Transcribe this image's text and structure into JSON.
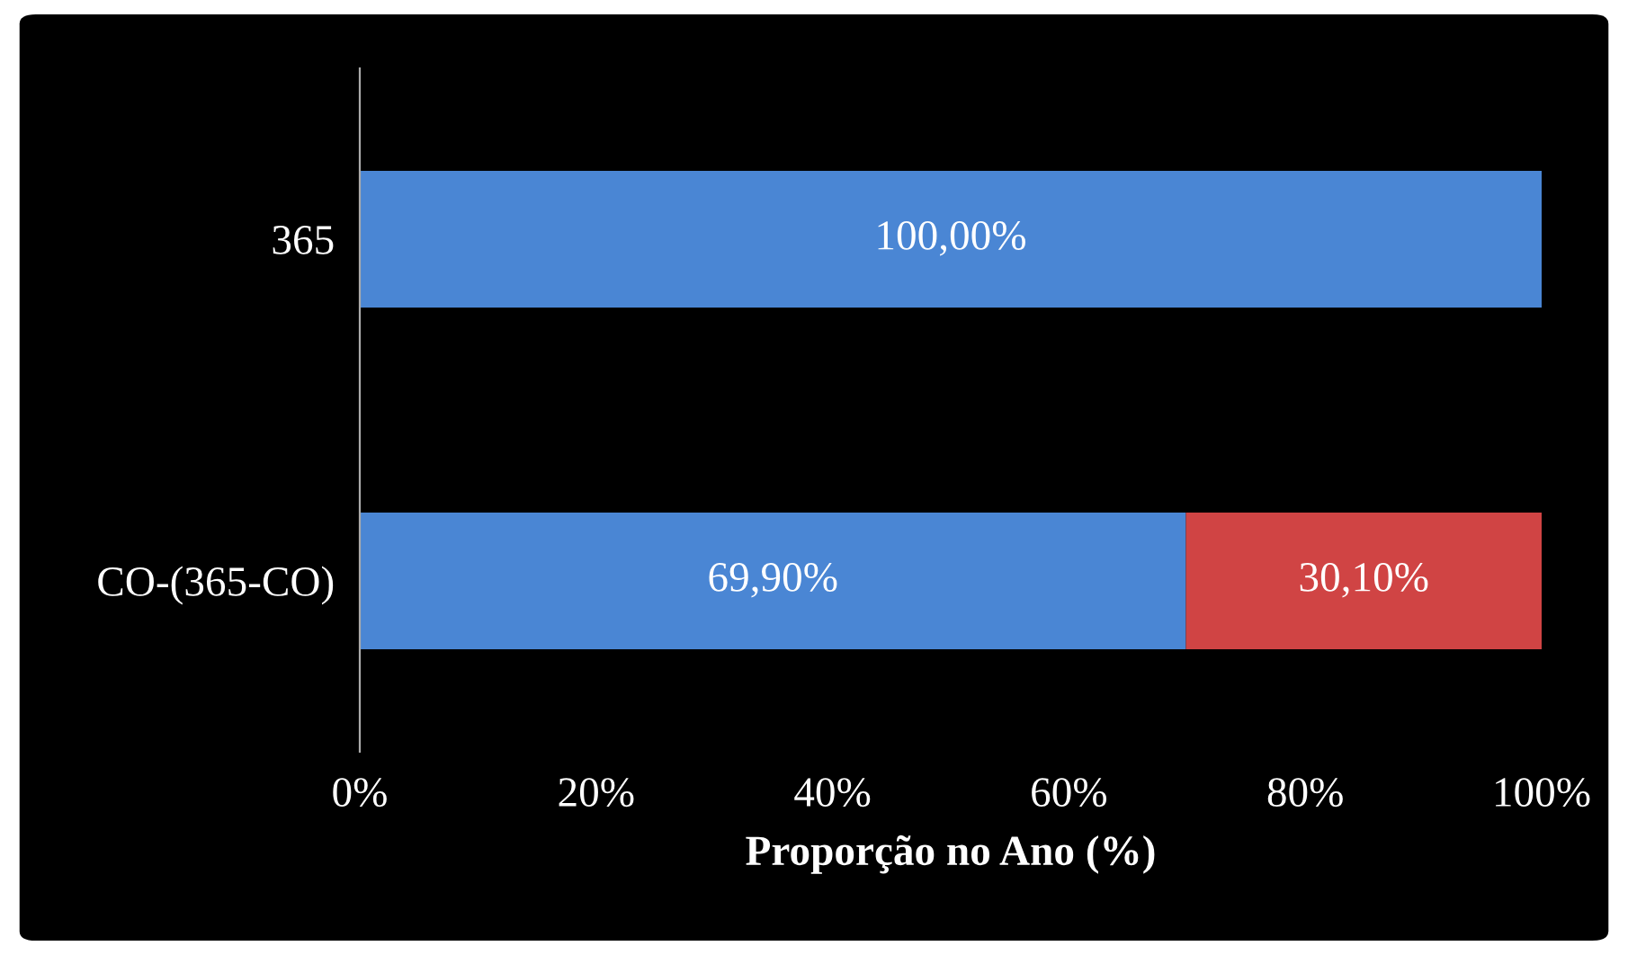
{
  "chart_data": {
    "type": "bar",
    "orientation": "horizontal",
    "stacked": true,
    "xlabel": "Proporção no Ano (%)",
    "categories": [
      "365",
      "CO-(365-CO)"
    ],
    "series": [
      {
        "color": "#4a86d4",
        "values": [
          100,
          69.9
        ],
        "value_labels": [
          "100,00%",
          "69,90%"
        ]
      },
      {
        "color": "#d04444",
        "values": [
          null,
          30.1
        ],
        "value_labels": [
          null,
          "30,10%"
        ]
      }
    ],
    "xlim": [
      0,
      100
    ],
    "xticks": [
      {
        "value": 0,
        "label": "0%"
      },
      {
        "value": 20,
        "label": "20%"
      },
      {
        "value": 40,
        "label": "40%"
      },
      {
        "value": 60,
        "label": "60%"
      },
      {
        "value": 80,
        "label": "80%"
      },
      {
        "value": 100,
        "label": "100%"
      }
    ],
    "grid": false,
    "legend": false
  }
}
